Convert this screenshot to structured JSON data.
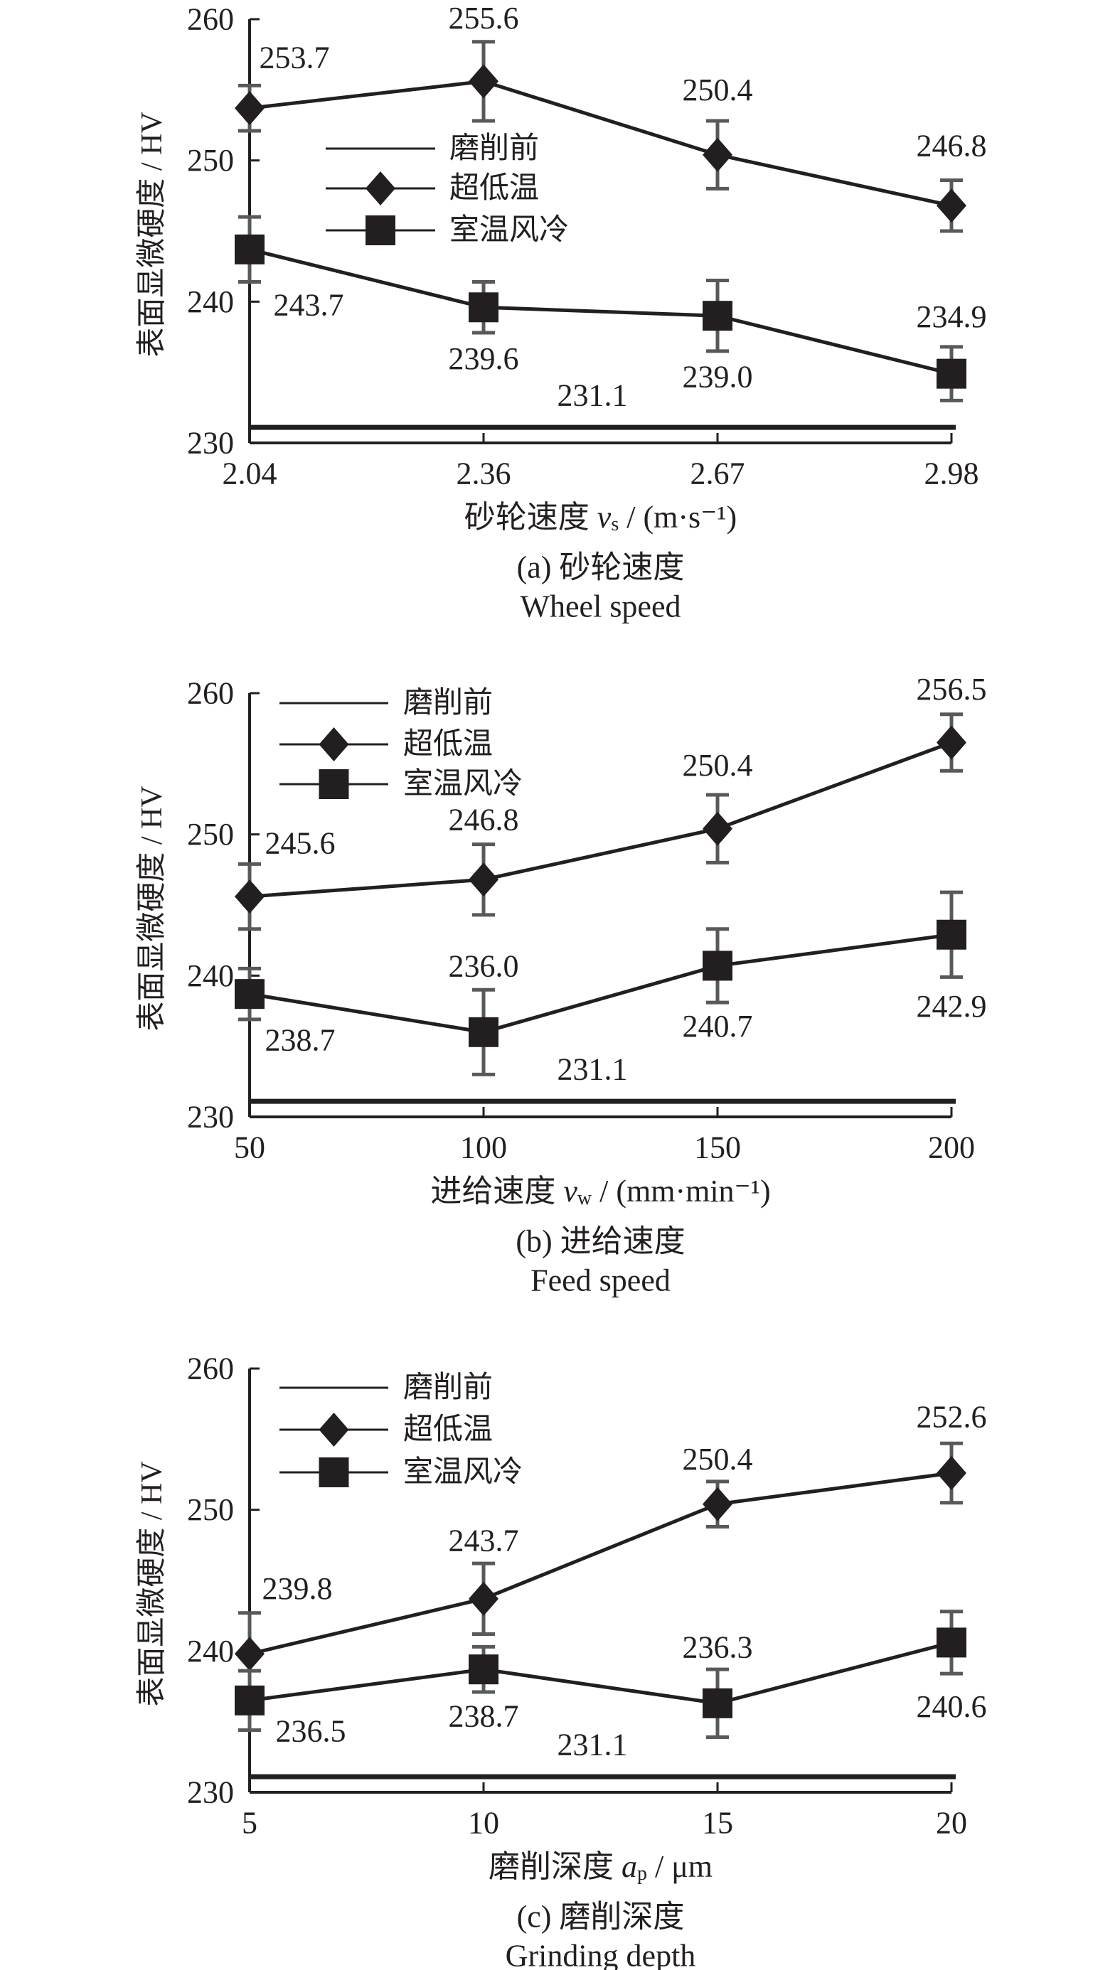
{
  "chart_data": [
    {
      "type": "line",
      "ylabel": "表面显微硬度 / HV",
      "xlabel": {
        "prefix": "砂轮速度 ",
        "symbol": "v",
        "subscript": "s",
        "unit": " / (m·s⁻¹)"
      },
      "caption": "(a) 砂轮速度",
      "caption_en": "Wheel speed",
      "x_ticks": [
        "2.04",
        "2.36",
        "2.67",
        "2.98"
      ],
      "y_ticks": [
        "230",
        "240",
        "250",
        "260"
      ],
      "ylim": [
        230,
        260
      ],
      "legend": [
        "磨削前",
        "超低温",
        "室温风冷"
      ],
      "legend_position": "upper-left",
      "baseline": {
        "name": "磨削前",
        "value": 231.1,
        "label": "231.1"
      },
      "series": [
        {
          "name": "超低温",
          "marker": "diamond",
          "values": [
            253.7,
            255.6,
            250.4,
            246.8
          ],
          "labels": [
            "253.7",
            "255.6",
            "250.4",
            "246.8"
          ],
          "errors": [
            1.6,
            2.8,
            2.4,
            1.8
          ]
        },
        {
          "name": "室温风冷",
          "marker": "square",
          "values": [
            243.7,
            239.6,
            239.0,
            234.9
          ],
          "labels": [
            "243.7",
            "239.6",
            "239.0",
            "234.9"
          ],
          "errors": [
            2.3,
            1.8,
            2.5,
            1.9
          ]
        }
      ]
    },
    {
      "type": "line",
      "ylabel": "表面显微硬度 / HV",
      "xlabel": {
        "prefix": "进给速度 ",
        "symbol": "v",
        "subscript": "w",
        "unit": " / (mm·min⁻¹)"
      },
      "caption": "(b) 进给速度",
      "caption_en": "Feed speed",
      "x_ticks": [
        "50",
        "100",
        "150",
        "200"
      ],
      "y_ticks": [
        "230",
        "240",
        "250",
        "260"
      ],
      "ylim": [
        230,
        260
      ],
      "legend": [
        "磨削前",
        "超低温",
        "室温风冷"
      ],
      "legend_position": "upper-left",
      "baseline": {
        "name": "磨削前",
        "value": 231.1,
        "label": "231.1"
      },
      "series": [
        {
          "name": "超低温",
          "marker": "diamond",
          "values": [
            245.6,
            246.8,
            250.4,
            256.5
          ],
          "labels": [
            "245.6",
            "246.8",
            "250.4",
            "256.5"
          ],
          "errors": [
            2.3,
            2.5,
            2.4,
            2.0
          ]
        },
        {
          "name": "室温风冷",
          "marker": "square",
          "values": [
            238.7,
            236.0,
            240.7,
            242.9
          ],
          "labels": [
            "238.7",
            "236.0",
            "240.7",
            "242.9"
          ],
          "errors": [
            1.8,
            3.0,
            2.6,
            3.0
          ]
        }
      ]
    },
    {
      "type": "line",
      "ylabel": "表面显微硬度 / HV",
      "xlabel": {
        "prefix": "磨削深度 ",
        "symbol": "a",
        "subscript": "p",
        "unit": " / μm"
      },
      "caption": "(c) 磨削深度",
      "caption_en": "Grinding depth",
      "x_ticks": [
        "5",
        "10",
        "15",
        "20"
      ],
      "y_ticks": [
        "230",
        "240",
        "250",
        "260"
      ],
      "ylim": [
        230,
        260
      ],
      "legend": [
        "磨削前",
        "超低温",
        "室温风冷"
      ],
      "legend_position": "upper-left",
      "baseline": {
        "name": "磨削前",
        "value": 231.1,
        "label": "231.1"
      },
      "series": [
        {
          "name": "超低温",
          "marker": "diamond",
          "values": [
            239.8,
            243.7,
            250.4,
            252.6
          ],
          "labels": [
            "239.8",
            "243.7",
            "250.4",
            "252.6"
          ],
          "errors": [
            2.9,
            2.5,
            1.6,
            2.1
          ]
        },
        {
          "name": "室温风冷",
          "marker": "square",
          "values": [
            236.5,
            238.7,
            236.3,
            240.6
          ],
          "labels": [
            "236.5",
            "238.7",
            "236.3",
            "240.6"
          ],
          "errors": [
            2.1,
            1.6,
            2.4,
            2.2
          ]
        }
      ]
    }
  ]
}
